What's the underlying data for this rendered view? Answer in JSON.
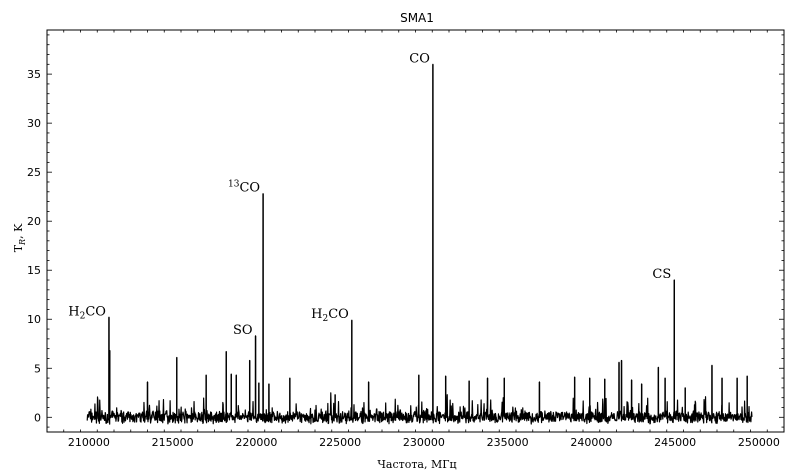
{
  "chart_data": {
    "type": "line",
    "title": "SMA1",
    "xlabel": "Частота, МГц",
    "ylabel_main": "T",
    "ylabel_sub": "R",
    "ylabel_tail": ", K",
    "xlim": [
      207500,
      251500
    ],
    "ylim": [
      -1.5,
      39.5
    ],
    "xticks": [
      210000,
      215000,
      220000,
      225000,
      230000,
      235000,
      240000,
      245000,
      250000
    ],
    "yticks": [
      0,
      5,
      10,
      15,
      20,
      25,
      30,
      35
    ],
    "x_range_data": [
      209900,
      249600
    ],
    "baseline_noise": 0.5,
    "series": [
      {
        "peaks": [
          {
            "x": 211200,
            "y": 10.2
          },
          {
            "x": 211250,
            "y": 6.8
          },
          {
            "x": 213500,
            "y": 3.6
          },
          {
            "x": 215250,
            "y": 6.1
          },
          {
            "x": 217000,
            "y": 4.3
          },
          {
            "x": 218200,
            "y": 6.7
          },
          {
            "x": 218500,
            "y": 4.4
          },
          {
            "x": 218800,
            "y": 4.3
          },
          {
            "x": 219600,
            "y": 5.8
          },
          {
            "x": 219950,
            "y": 8.3
          },
          {
            "x": 220150,
            "y": 3.5
          },
          {
            "x": 220400,
            "y": 22.8
          },
          {
            "x": 220750,
            "y": 3.4
          },
          {
            "x": 222000,
            "y": 4.0
          },
          {
            "x": 224700,
            "y": 2.3
          },
          {
            "x": 225700,
            "y": 9.9
          },
          {
            "x": 226700,
            "y": 3.6
          },
          {
            "x": 229700,
            "y": 4.3
          },
          {
            "x": 230540,
            "y": 36.0
          },
          {
            "x": 231300,
            "y": 4.2
          },
          {
            "x": 232700,
            "y": 3.7
          },
          {
            "x": 233800,
            "y": 4.0
          },
          {
            "x": 234800,
            "y": 4.0
          },
          {
            "x": 236900,
            "y": 3.6
          },
          {
            "x": 239000,
            "y": 4.1
          },
          {
            "x": 239900,
            "y": 4.0
          },
          {
            "x": 240800,
            "y": 3.9
          },
          {
            "x": 241650,
            "y": 5.6
          },
          {
            "x": 241800,
            "y": 5.8
          },
          {
            "x": 242400,
            "y": 3.8
          },
          {
            "x": 243000,
            "y": 3.4
          },
          {
            "x": 244000,
            "y": 5.1
          },
          {
            "x": 244400,
            "y": 4.0
          },
          {
            "x": 244950,
            "y": 14.0
          },
          {
            "x": 245600,
            "y": 3.0
          },
          {
            "x": 247200,
            "y": 5.3
          },
          {
            "x": 247800,
            "y": 4.0
          },
          {
            "x": 248700,
            "y": 4.0
          },
          {
            "x": 249300,
            "y": 4.2
          }
        ]
      }
    ],
    "annotations": [
      {
        "x": 211200,
        "y": 10.2,
        "base": "H",
        "sub": "2",
        "tail": "CO",
        "pre": ""
      },
      {
        "x": 219950,
        "y": 8.3,
        "base": "SO",
        "sub": "",
        "tail": "",
        "pre": ""
      },
      {
        "x": 220400,
        "y": 22.8,
        "base": "CO",
        "sub": "",
        "tail": "",
        "pre": "13"
      },
      {
        "x": 225700,
        "y": 9.9,
        "base": "H",
        "sub": "2",
        "tail": "CO",
        "pre": ""
      },
      {
        "x": 230540,
        "y": 36.0,
        "base": "CO",
        "sub": "",
        "tail": "",
        "pre": ""
      },
      {
        "x": 244950,
        "y": 14.0,
        "base": "CS",
        "sub": "",
        "tail": "",
        "pre": ""
      }
    ],
    "grid": false,
    "color": "#000000"
  }
}
